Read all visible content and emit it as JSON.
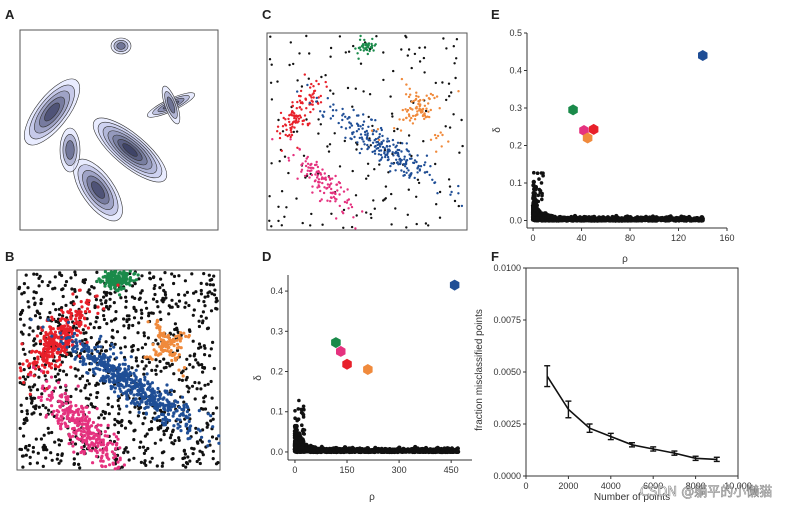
{
  "figure": {
    "watermark": "CSDN @躺平的小懒猫"
  },
  "colors": {
    "red": "#e8202a",
    "blue": "#1f4e96",
    "green": "#1a8a4a",
    "orange": "#f08a3c",
    "magenta": "#e5327f",
    "black": "#111111",
    "density": "#1c2566"
  },
  "chart_data": [
    {
      "panel": "A",
      "type": "heatmap",
      "description_source": "density contour map of five distributions"
    },
    {
      "panel": "B",
      "type": "scatter",
      "series": [
        {
          "name": "",
          "color": "red"
        },
        {
          "name": "",
          "color": "blue"
        },
        {
          "name": "",
          "color": "green"
        },
        {
          "name": "",
          "color": "orange"
        },
        {
          "name": "",
          "color": "magenta"
        },
        {
          "name": "",
          "color": "black"
        }
      ]
    },
    {
      "panel": "C",
      "type": "scatter",
      "series": [
        {
          "name": "",
          "color": "red"
        },
        {
          "name": "",
          "color": "blue"
        },
        {
          "name": "",
          "color": "green"
        },
        {
          "name": "",
          "color": "orange"
        },
        {
          "name": "",
          "color": "magenta"
        },
        {
          "name": "",
          "color": "black"
        }
      ]
    },
    {
      "panel": "D",
      "type": "scatter",
      "xlabel": "ρ",
      "ylabel": "δ",
      "xlim": [
        -20,
        510
      ],
      "ylim": [
        -0.02,
        0.44
      ],
      "xticks": [
        0,
        150,
        300,
        450
      ],
      "yticks": [
        0.0,
        0.1,
        0.2,
        0.3,
        0.4
      ],
      "ytick_labels": [
        "0.0",
        "0.1",
        "0.2",
        "0.3",
        "0.4"
      ],
      "centers": [
        {
          "x": 460,
          "y": 0.415,
          "color": "blue"
        },
        {
          "x": 118,
          "y": 0.272,
          "color": "green"
        },
        {
          "x": 132,
          "y": 0.25,
          "color": "magenta"
        },
        {
          "x": 150,
          "y": 0.218,
          "color": "red"
        },
        {
          "x": 210,
          "y": 0.205,
          "color": "orange"
        }
      ]
    },
    {
      "panel": "E",
      "type": "scatter",
      "xlabel": "ρ",
      "ylabel": "δ",
      "xlim": [
        -5,
        160
      ],
      "ylim": [
        -0.02,
        0.5
      ],
      "xticks": [
        0,
        40,
        80,
        120,
        160
      ],
      "yticks": [
        0.0,
        0.1,
        0.2,
        0.3,
        0.4,
        0.5
      ],
      "ytick_labels": [
        "0.0",
        "0.1",
        "0.2",
        "0.3",
        "0.4",
        "0.5"
      ],
      "centers": [
        {
          "x": 140,
          "y": 0.44,
          "color": "blue"
        },
        {
          "x": 33,
          "y": 0.295,
          "color": "green"
        },
        {
          "x": 42,
          "y": 0.24,
          "color": "magenta"
        },
        {
          "x": 50,
          "y": 0.243,
          "color": "red"
        },
        {
          "x": 45,
          "y": 0.22,
          "color": "orange"
        }
      ]
    },
    {
      "panel": "F",
      "type": "line",
      "xlabel": "Number of points",
      "ylabel": "fraction misclassified points",
      "xlim": [
        0,
        10000
      ],
      "ylim": [
        0,
        0.01
      ],
      "xticks": [
        0,
        2000,
        4000,
        6000,
        8000,
        10000
      ],
      "xtick_labels": [
        "0",
        "2000",
        "4000",
        "6000",
        "8000",
        "10,000"
      ],
      "yticks": [
        0.0,
        0.0025,
        0.005,
        0.0075,
        0.01
      ],
      "ytick_labels": [
        "0.0000",
        "0.0025",
        "0.0050",
        "0.0075",
        "0.0100"
      ],
      "x": [
        1000,
        2000,
        3000,
        4000,
        5000,
        6000,
        7000,
        8000,
        9000
      ],
      "y": [
        0.0048,
        0.0032,
        0.0023,
        0.0019,
        0.0015,
        0.0013,
        0.0011,
        0.00085,
        0.0008
      ],
      "yerr": [
        0.0005,
        0.0004,
        0.0002,
        0.00015,
        0.0001,
        0.0001,
        0.0001,
        0.0001,
        0.0001
      ]
    }
  ]
}
